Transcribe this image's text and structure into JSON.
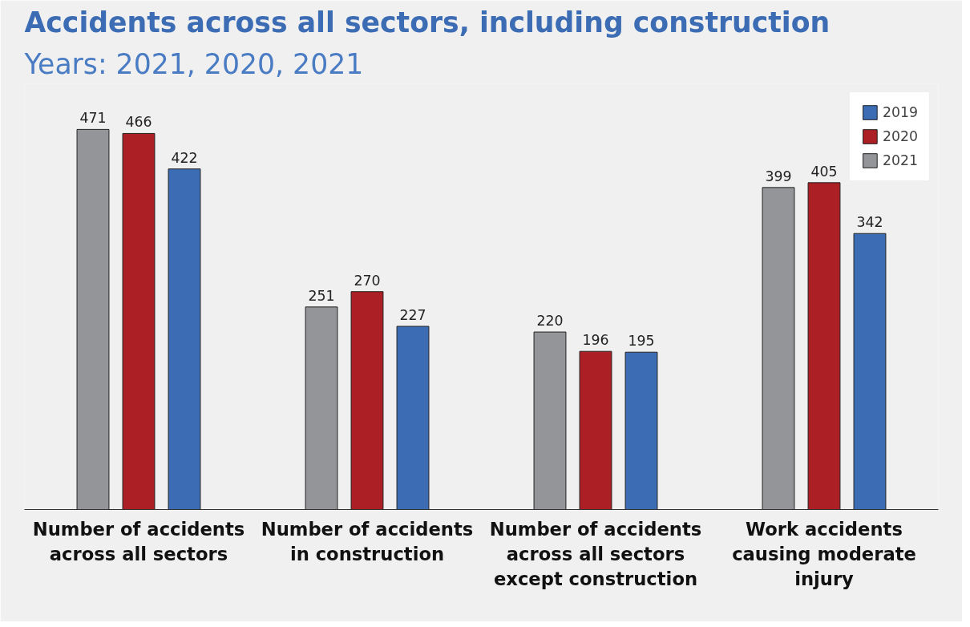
{
  "chart_data": {
    "type": "bar",
    "title": "Accidents across all sectors, including construction",
    "subtitle": "Years: 2021, 2020, 2021",
    "categories": [
      "Number of accidents across all sectors",
      "Number of accidents in construction",
      "Number of accidents across all sectors except construction",
      "Work accidents causing moderate injury"
    ],
    "series": [
      {
        "name": "2019",
        "color": "#3b6cb4",
        "values": [
          422,
          227,
          195,
          342
        ]
      },
      {
        "name": "2020",
        "color": "#ac1f24",
        "values": [
          466,
          270,
          196,
          405
        ]
      },
      {
        "name": "2021",
        "color": "#939598",
        "values": [
          471,
          251,
          220,
          399
        ]
      }
    ],
    "data_labels": true,
    "grid": false,
    "legend": "top right"
  }
}
